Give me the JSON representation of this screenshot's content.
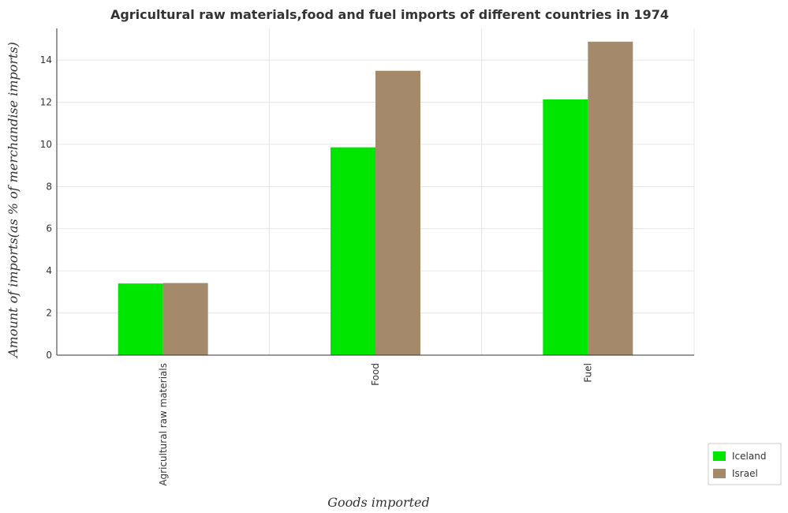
{
  "chart_data": {
    "type": "bar",
    "title": "Agricultural raw materials,food and fuel imports of different countries in 1974",
    "xlabel": "Goods imported",
    "ylabel": "Amount of imports(as % of merchandise imports)",
    "categories": [
      "Agricultural raw materials",
      "Food",
      "Fuel"
    ],
    "series": [
      {
        "name": "Iceland",
        "color": "#00e600",
        "values": [
          3.4,
          9.86,
          12.13
        ]
      },
      {
        "name": "Israel",
        "color": "#a48a6b",
        "values": [
          3.42,
          13.49,
          14.87
        ]
      }
    ],
    "ylim": [
      0,
      15.5
    ],
    "yticks": [
      0,
      2,
      4,
      6,
      8,
      10,
      12,
      14
    ],
    "grid": true,
    "legend_position": "bottom-right"
  }
}
